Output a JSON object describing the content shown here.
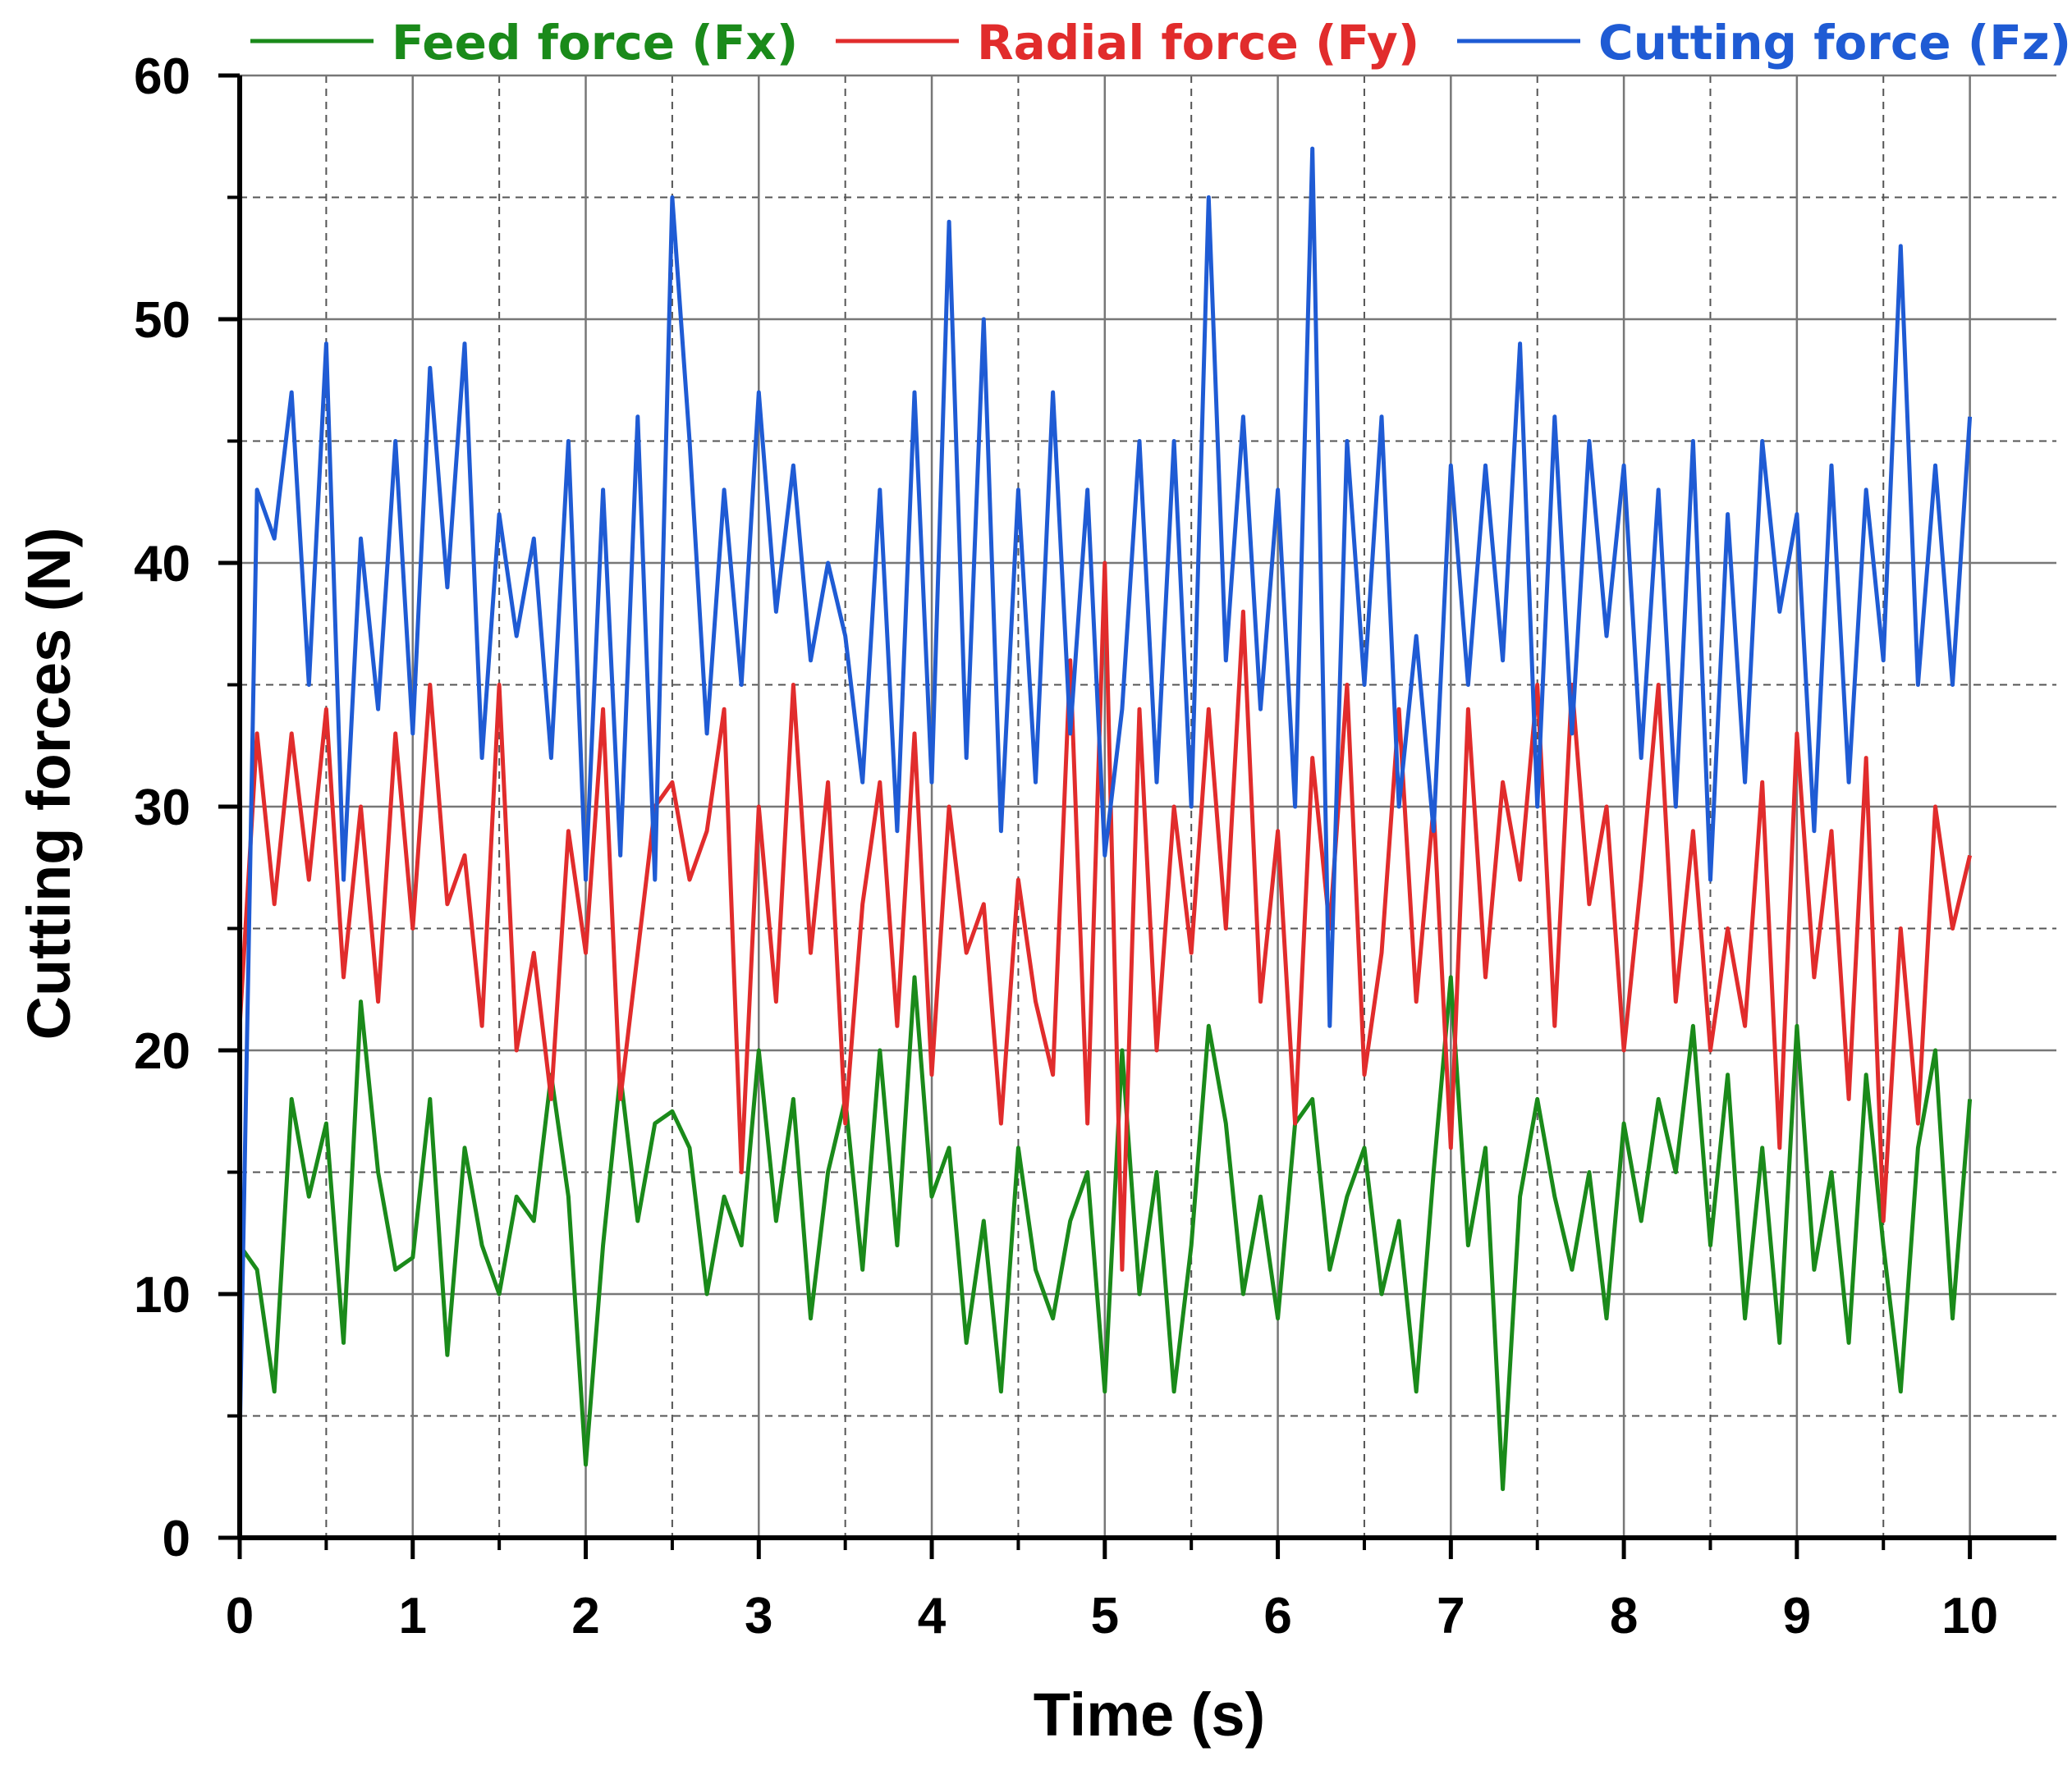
{
  "chart_data": {
    "type": "line",
    "xlabel": "Time (s)",
    "ylabel": "Cutting forces (N)",
    "xlim": [
      0,
      10.5
    ],
    "ylim": [
      0,
      60
    ],
    "x_ticks": [
      "0",
      "1",
      "2",
      "3",
      "4",
      "5",
      "6",
      "7",
      "8",
      "9",
      "10"
    ],
    "y_ticks": [
      "0",
      "10",
      "20",
      "30",
      "40",
      "50",
      "60"
    ],
    "x_tick_values": [
      0,
      1,
      2,
      3,
      4,
      5,
      6,
      7,
      8,
      9,
      10
    ],
    "y_tick_values": [
      0,
      10,
      20,
      30,
      40,
      50,
      60
    ],
    "x_minor_grid": [
      0.5,
      1.5,
      2.5,
      3.5,
      4.5,
      5.5,
      6.5,
      7.5,
      8.5,
      9.5
    ],
    "y_minor_grid": [
      5,
      15,
      25,
      35,
      45,
      55
    ],
    "grid": true,
    "legend_position": "top",
    "x": [
      0,
      0.1,
      0.2,
      0.3,
      0.4,
      0.5,
      0.6,
      0.7,
      0.8,
      0.9,
      1.0,
      1.1,
      1.2,
      1.3,
      1.4,
      1.5,
      1.6,
      1.7,
      1.8,
      1.9,
      2.0,
      2.1,
      2.2,
      2.3,
      2.4,
      2.5,
      2.6,
      2.7,
      2.8,
      2.9,
      3.0,
      3.1,
      3.2,
      3.3,
      3.4,
      3.5,
      3.6,
      3.7,
      3.8,
      3.9,
      4.0,
      4.1,
      4.2,
      4.3,
      4.4,
      4.5,
      4.6,
      4.7,
      4.8,
      4.9,
      5.0,
      5.1,
      5.2,
      5.3,
      5.4,
      5.5,
      5.6,
      5.7,
      5.8,
      5.9,
      6.0,
      6.1,
      6.2,
      6.3,
      6.4,
      6.5,
      6.6,
      6.7,
      6.8,
      6.9,
      7.0,
      7.1,
      7.2,
      7.3,
      7.4,
      7.5,
      7.6,
      7.7,
      7.8,
      7.9,
      8.0,
      8.1,
      8.2,
      8.3,
      8.4,
      8.5,
      8.6,
      8.7,
      8.8,
      8.9,
      9.0,
      9.1,
      9.2,
      9.3,
      9.4,
      9.5,
      9.6,
      9.7,
      9.8,
      9.9,
      10.0
    ],
    "series": [
      {
        "name": "Feed force (Fx)",
        "color": "#1a8a1a",
        "values": [
          12,
          11,
          6,
          18,
          14,
          17,
          8,
          22,
          15,
          11,
          11.5,
          18,
          7.5,
          16,
          12,
          10,
          14,
          13,
          19,
          14,
          3,
          12,
          19,
          13,
          17,
          17.5,
          16,
          10,
          14,
          12,
          20,
          13,
          18,
          9,
          15,
          18,
          11,
          20,
          12,
          23,
          14,
          16,
          8,
          13,
          6,
          16,
          11,
          9,
          13,
          15,
          6,
          20,
          10,
          15,
          6,
          12,
          21,
          17,
          10,
          14,
          9,
          17,
          18,
          11,
          14,
          16,
          10,
          13,
          6,
          15,
          23,
          12,
          16,
          2,
          14,
          18,
          14,
          11,
          15,
          9,
          17,
          13,
          18,
          15,
          21,
          12,
          19,
          9,
          16,
          8,
          21,
          11,
          15,
          8,
          19,
          12,
          6,
          16,
          20,
          9,
          18
        ]
      },
      {
        "name": "Radial force (Fy)",
        "color": "#e12c2c",
        "values": [
          21,
          33,
          26,
          33,
          27,
          34,
          23,
          30,
          22,
          33,
          25,
          35,
          26,
          28,
          21,
          35,
          20,
          24,
          18,
          29,
          24,
          34,
          18,
          24,
          30,
          31,
          27,
          29,
          34,
          15,
          30,
          22,
          35,
          24,
          31,
          17,
          26,
          31,
          21,
          33,
          19,
          30,
          24,
          26,
          17,
          27,
          22,
          19,
          36,
          17,
          40,
          11,
          34,
          20,
          30,
          24,
          34,
          25,
          38,
          22,
          29,
          17,
          32,
          25,
          35,
          19,
          24,
          34,
          22,
          30,
          16,
          34,
          23,
          31,
          27,
          35,
          21,
          35,
          26,
          30,
          20,
          27,
          35,
          22,
          29,
          20,
          25,
          21,
          31,
          16,
          33,
          23,
          29,
          18,
          32,
          13,
          25,
          17,
          30,
          25,
          28
        ]
      },
      {
        "name": "Cutting force (Fz)",
        "color": "#1f5bd4",
        "values": [
          4,
          43,
          41,
          47,
          35,
          49,
          27,
          41,
          34,
          45,
          33,
          48,
          39,
          49,
          32,
          42,
          37,
          41,
          32,
          45,
          27,
          43,
          28,
          46,
          27,
          55,
          45,
          33,
          43,
          35,
          47,
          38,
          44,
          36,
          40,
          37,
          31,
          43,
          29,
          47,
          31,
          54,
          32,
          50,
          29,
          43,
          31,
          47,
          33,
          43,
          28,
          34,
          45,
          31,
          45,
          30,
          55,
          36,
          46,
          34,
          43,
          30,
          57,
          21,
          45,
          35,
          46,
          30,
          37,
          29,
          44,
          35,
          44,
          36,
          49,
          30,
          46,
          33,
          45,
          37,
          44,
          32,
          43,
          30,
          45,
          27,
          42,
          31,
          45,
          38,
          42,
          29,
          44,
          31,
          43,
          36,
          53,
          35,
          44,
          35,
          46
        ]
      }
    ]
  }
}
